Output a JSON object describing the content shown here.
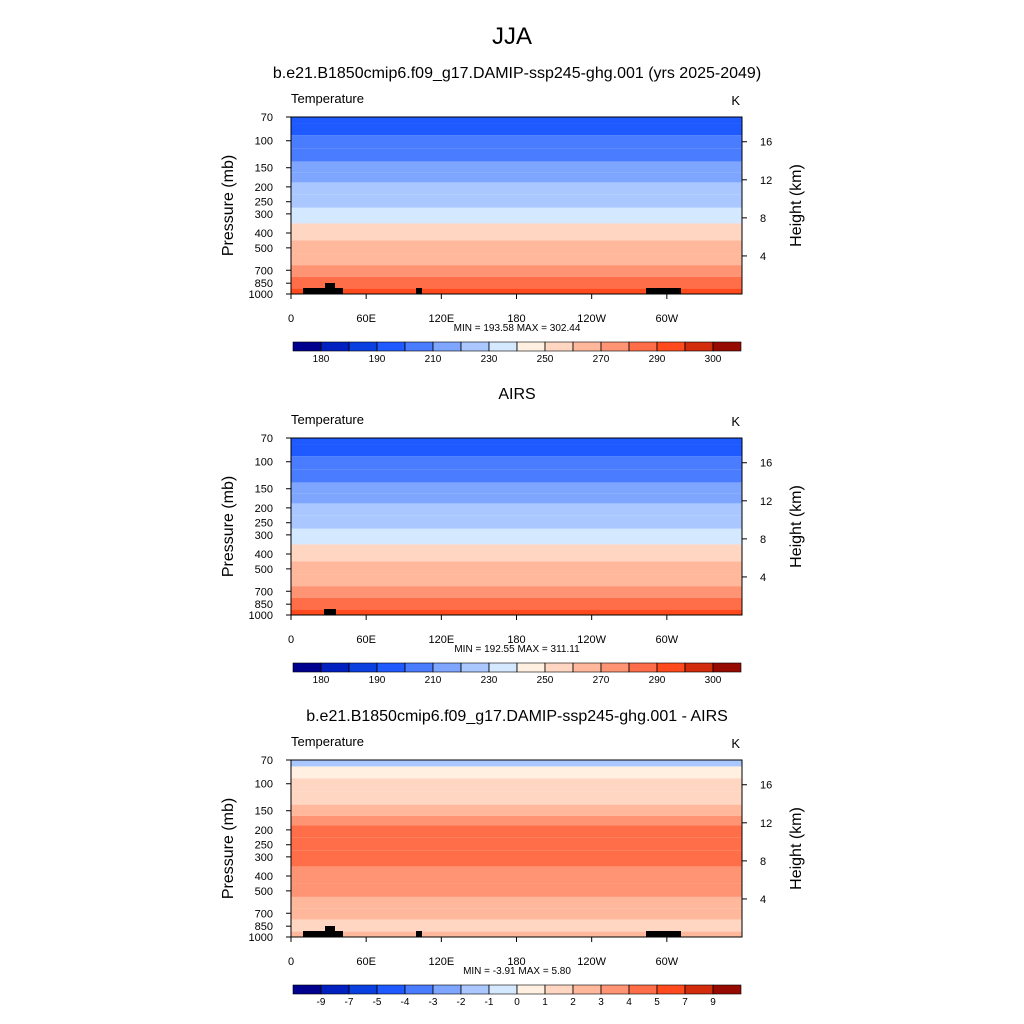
{
  "title": "JJA",
  "chart_data": [
    {
      "type": "contour",
      "title": "b.e21.B1850cmip6.f09_g17.DAMIP-ssp245-ghg.001 (yrs 2025-2049)",
      "left_label": "Temperature",
      "right_label": "K",
      "ylabel": "Pressure (mb)",
      "y2label": "Height (km)",
      "ylim": [
        1000,
        70
      ],
      "log_y": true,
      "yticks": [
        70,
        100,
        150,
        200,
        250,
        300,
        400,
        500,
        700,
        850,
        1000
      ],
      "y2lim": [
        0,
        18.6
      ],
      "y2ticks": [
        4,
        8,
        12,
        16
      ],
      "xlim": [
        0,
        360
      ],
      "xticks": [
        0,
        {
          "value": 60,
          "label": "60E"
        },
        {
          "value": 120,
          "label": "120E"
        },
        180,
        {
          "value": 240,
          "label": "120W"
        },
        {
          "value": 300,
          "label": "60W"
        }
      ],
      "min_label": "MIN =",
      "min": 193.58,
      "max_label": "MAX =",
      "max": 302.44,
      "levels": [
        180,
        185,
        190,
        200,
        210,
        220,
        230,
        240,
        250,
        260,
        270,
        280,
        290,
        295,
        300
      ],
      "cbar_ticks": [
        180,
        190,
        210,
        230,
        250,
        270,
        290,
        300
      ],
      "colors": [
        "#00008f",
        "#0020c0",
        "#0a40e0",
        "#1e5aff",
        "#4a7cff",
        "#7fa6ff",
        "#aac8ff",
        "#d4e8ff",
        "#fff0e2",
        "#ffd6c2",
        "#ffb89c",
        "#ff9474",
        "#ff6e48",
        "#ff4a1e",
        "#d22c0c",
        "#960a00"
      ],
      "pressure": [
        70,
        85,
        100,
        125,
        150,
        175,
        200,
        250,
        300,
        400,
        500,
        600,
        700,
        850,
        1000
      ],
      "values": [
        198,
        199,
        201,
        207,
        212,
        216,
        221,
        229,
        237,
        250,
        260,
        268,
        276,
        285,
        293
      ]
    },
    {
      "type": "contour",
      "title": "AIRS",
      "left_label": "Temperature",
      "right_label": "K",
      "ylabel": "Pressure (mb)",
      "y2label": "Height (km)",
      "ylim": [
        1000,
        70
      ],
      "log_y": true,
      "yticks": [
        70,
        100,
        150,
        200,
        250,
        300,
        400,
        500,
        700,
        850,
        1000
      ],
      "y2lim": [
        0,
        18.6
      ],
      "y2ticks": [
        4,
        8,
        12,
        16
      ],
      "xlim": [
        0,
        360
      ],
      "xticks": [
        0,
        {
          "value": 60,
          "label": "60E"
        },
        {
          "value": 120,
          "label": "120E"
        },
        180,
        {
          "value": 240,
          "label": "120W"
        },
        {
          "value": 300,
          "label": "60W"
        }
      ],
      "min_label": "MIN =",
      "min": 192.55,
      "max_label": "MAX =",
      "max": 311.11,
      "levels": [
        180,
        185,
        190,
        200,
        210,
        220,
        230,
        240,
        250,
        260,
        270,
        280,
        290,
        295,
        300
      ],
      "cbar_ticks": [
        180,
        190,
        210,
        230,
        250,
        270,
        290,
        300
      ],
      "colors": [
        "#00008f",
        "#0020c0",
        "#0a40e0",
        "#1e5aff",
        "#4a7cff",
        "#7fa6ff",
        "#aac8ff",
        "#d4e8ff",
        "#fff0e2",
        "#ffd6c2",
        "#ffb89c",
        "#ff9474",
        "#ff6e48",
        "#ff4a1e",
        "#d22c0c",
        "#960a00"
      ],
      "pressure": [
        70,
        85,
        100,
        125,
        150,
        175,
        200,
        250,
        300,
        400,
        500,
        600,
        700,
        850,
        1000
      ],
      "values": [
        197,
        199,
        201,
        207,
        212,
        216,
        221,
        229,
        238,
        251,
        261,
        269,
        277,
        286,
        294
      ]
    },
    {
      "type": "contour",
      "title": "b.e21.B1850cmip6.f09_g17.DAMIP-ssp245-ghg.001 - AIRS",
      "left_label": "Temperature",
      "right_label": "K",
      "ylabel": "Pressure (mb)",
      "y2label": "Height (km)",
      "ylim": [
        1000,
        70
      ],
      "log_y": true,
      "yticks": [
        70,
        100,
        150,
        200,
        250,
        300,
        400,
        500,
        700,
        850,
        1000
      ],
      "y2lim": [
        0,
        18.6
      ],
      "y2ticks": [
        4,
        8,
        12,
        16
      ],
      "xlim": [
        0,
        360
      ],
      "xticks": [
        0,
        {
          "value": 60,
          "label": "60E"
        },
        {
          "value": 120,
          "label": "120E"
        },
        180,
        {
          "value": 240,
          "label": "120W"
        },
        {
          "value": 300,
          "label": "60W"
        }
      ],
      "min_label": "MIN =",
      "min": -3.91,
      "max_label": "MAX =",
      "max": {
        "value": 5.8,
        "label": "5.80"
      },
      "levels": [
        -9,
        -7,
        -5,
        -4,
        -3,
        -2,
        -1,
        0,
        1,
        2,
        3,
        4,
        5,
        7,
        9
      ],
      "cbar_ticks": [
        -9,
        -7,
        -5,
        -4,
        -3,
        -2,
        -1,
        0,
        1,
        2,
        3,
        4,
        5,
        7,
        9
      ],
      "colors": [
        "#00008f",
        "#0020c0",
        "#0a40e0",
        "#1e5aff",
        "#4a7cff",
        "#7fa6ff",
        "#aac8ff",
        "#d4e8ff",
        "#fff0e2",
        "#ffd6c2",
        "#ffb89c",
        "#ff9474",
        "#ff6e48",
        "#ff4a1e",
        "#d22c0c",
        "#960a00"
      ],
      "pressure": [
        70,
        85,
        100,
        125,
        150,
        175,
        200,
        250,
        300,
        400,
        500,
        600,
        700,
        850,
        1000
      ],
      "values": [
        -1.5,
        0.5,
        1.5,
        1.5,
        2.5,
        3.5,
        4.5,
        4.5,
        4.5,
        3.5,
        3.5,
        2.5,
        2.5,
        1.5,
        2.5
      ]
    }
  ]
}
